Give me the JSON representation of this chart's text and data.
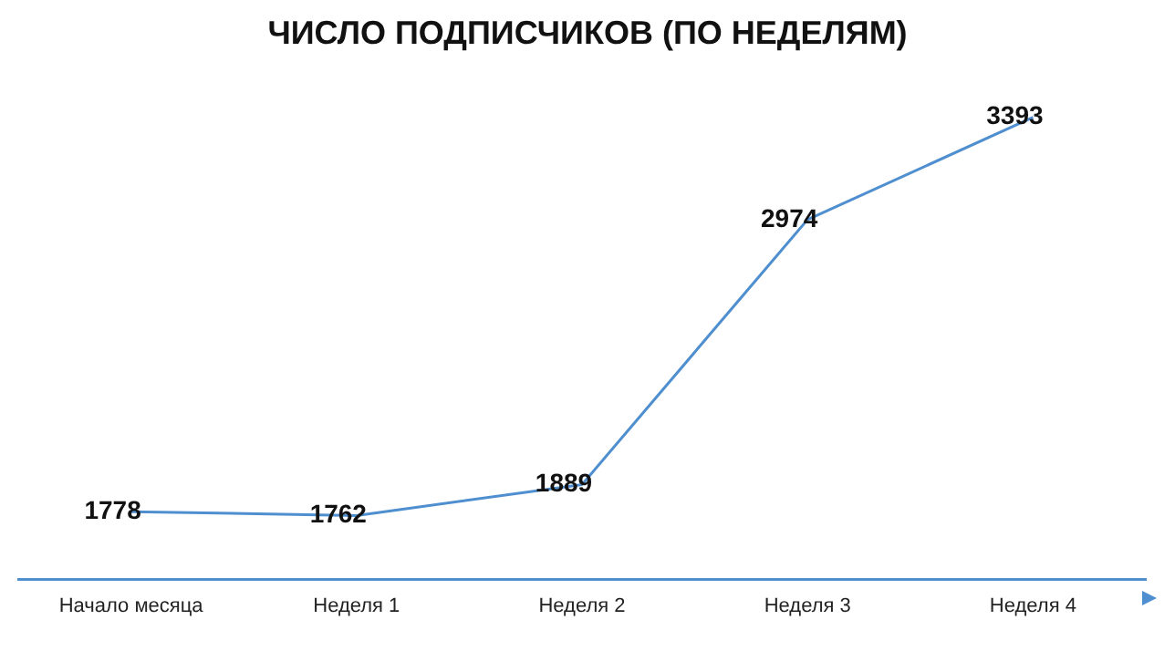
{
  "chart_data": {
    "type": "line",
    "title": "ЧИСЛО ПОДПИСЧИКОВ (ПО НЕДЕЛЯМ)",
    "categories": [
      "Начало месяца",
      "Неделя 1",
      "Неделя 2",
      "Неделя 3",
      "Неделя 4"
    ],
    "series": [
      {
        "color": "#4f8fcf",
        "values": [
          1778,
          1762,
          1889,
          2974,
          3393
        ]
      }
    ],
    "data_labels": true,
    "marker": "none",
    "legend": false,
    "grid": false,
    "tick_labels": "x"
  }
}
